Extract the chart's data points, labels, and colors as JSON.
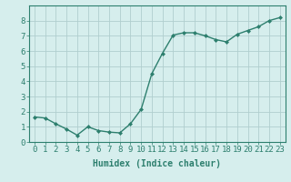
{
  "x": [
    0,
    1,
    2,
    3,
    4,
    5,
    6,
    7,
    8,
    9,
    10,
    11,
    12,
    13,
    14,
    15,
    16,
    17,
    18,
    19,
    20,
    21,
    22,
    23
  ],
  "y": [
    1.65,
    1.58,
    1.2,
    0.85,
    0.45,
    1.0,
    0.75,
    0.65,
    0.6,
    1.2,
    2.15,
    4.5,
    5.85,
    7.05,
    7.2,
    7.2,
    7.0,
    6.75,
    6.6,
    7.1,
    7.35,
    7.6,
    8.0,
    8.2
  ],
  "line_color": "#2d7f6e",
  "marker": "D",
  "marker_size": 2.0,
  "bg_color": "#d6eeed",
  "grid_color": "#c8dedd",
  "grid_color_major": "#b0cece",
  "xlabel": "Humidex (Indice chaleur)",
  "xlabel_fontsize": 7,
  "tick_fontsize": 6.5,
  "xlim": [
    -0.5,
    23.5
  ],
  "ylim": [
    0,
    9
  ],
  "yticks": [
    0,
    1,
    2,
    3,
    4,
    5,
    6,
    7,
    8
  ],
  "xticks": [
    0,
    1,
    2,
    3,
    4,
    5,
    6,
    7,
    8,
    9,
    10,
    11,
    12,
    13,
    14,
    15,
    16,
    17,
    18,
    19,
    20,
    21,
    22,
    23
  ],
  "line_width": 1.0
}
